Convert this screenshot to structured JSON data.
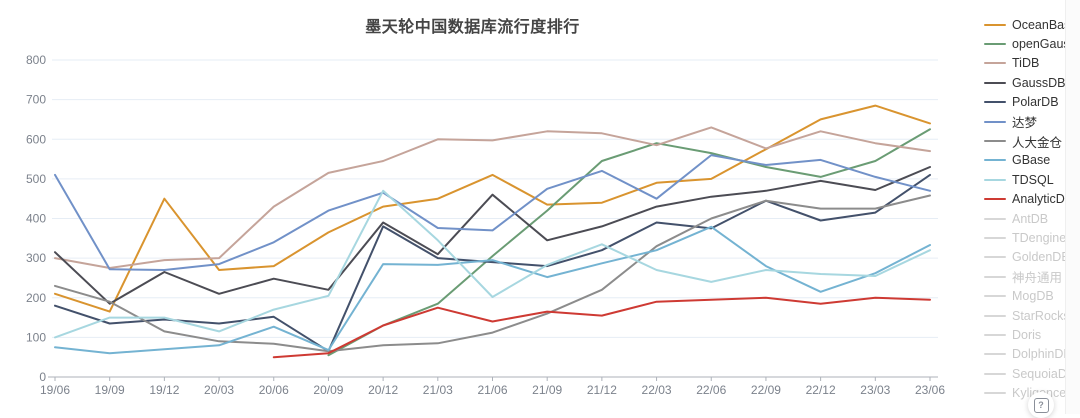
{
  "title": "墨天轮中国数据库流行度排行",
  "help_button": {
    "glyph": "?"
  },
  "chart_data": {
    "type": "line",
    "title": "墨天轮中国数据库流行度排行",
    "xlabel": "",
    "ylabel": "",
    "ylim": [
      0,
      800
    ],
    "y_ticks": [
      0,
      100,
      200,
      300,
      400,
      500,
      600,
      700,
      800
    ],
    "grid": true,
    "legend_position": "right",
    "categories": [
      "19/06",
      "19/09",
      "19/12",
      "20/03",
      "20/06",
      "20/09",
      "20/12",
      "21/03",
      "21/06",
      "21/09",
      "21/12",
      "22/03",
      "22/06",
      "22/09",
      "22/12",
      "23/03",
      "23/06"
    ],
    "series": [
      {
        "name": "OceanBase",
        "color": "#d9942f",
        "values": [
          210,
          165,
          450,
          270,
          280,
          365,
          430,
          450,
          510,
          435,
          440,
          490,
          500,
          575,
          650,
          685,
          640
        ]
      },
      {
        "name": "openGauss",
        "color": "#6a9c74",
        "values": [
          null,
          null,
          null,
          null,
          null,
          55,
          130,
          185,
          305,
          420,
          545,
          590,
          565,
          530,
          505,
          545,
          625
        ]
      },
      {
        "name": "TiDB",
        "color": "#c5a49a",
        "values": [
          300,
          275,
          295,
          300,
          430,
          515,
          545,
          600,
          597,
          620,
          615,
          585,
          630,
          577,
          620,
          590,
          570
        ]
      },
      {
        "name": "GaussDB",
        "color": "#4c4c54",
        "values": [
          315,
          185,
          265,
          210,
          248,
          220,
          390,
          310,
          460,
          345,
          380,
          430,
          455,
          470,
          495,
          472,
          530
        ]
      },
      {
        "name": "PolarDB",
        "color": "#43516b",
        "values": [
          180,
          135,
          145,
          135,
          152,
          65,
          380,
          300,
          290,
          280,
          320,
          390,
          375,
          445,
          395,
          415,
          510
        ]
      },
      {
        "name": "达梦",
        "color": "#7191c8",
        "values": [
          510,
          272,
          270,
          285,
          340,
          420,
          465,
          376,
          370,
          475,
          520,
          450,
          560,
          535,
          548,
          505,
          470
        ]
      },
      {
        "name": "人大金仓",
        "color": "#8c8c8c",
        "values": [
          230,
          190,
          115,
          90,
          84,
          65,
          80,
          85,
          112,
          160,
          220,
          330,
          400,
          445,
          425,
          425,
          458
        ]
      },
      {
        "name": "GBase",
        "color": "#74b3d2",
        "values": [
          75,
          60,
          70,
          80,
          127,
          68,
          285,
          283,
          295,
          252,
          287,
          320,
          379,
          280,
          215,
          262,
          333
        ]
      },
      {
        "name": "TDSQL",
        "color": "#a7d7e0",
        "values": [
          100,
          150,
          150,
          115,
          170,
          205,
          470,
          345,
          202,
          283,
          335,
          270,
          240,
          270,
          260,
          255,
          320
        ]
      },
      {
        "name": "AnalyticDB",
        "color": "#ce3a33",
        "values": [
          null,
          null,
          null,
          null,
          50,
          60,
          130,
          175,
          140,
          165,
          155,
          190,
          195,
          200,
          185,
          200,
          195
        ]
      }
    ],
    "inactive_series": [
      "AntDB",
      "TDengine",
      "GoldenDB",
      "神舟通用",
      "MogDB",
      "StarRocks",
      "Doris",
      "DolphinDB",
      "SequoiaDB",
      "Kyligence"
    ],
    "inactive_color": "#d7d7d7",
    "colors": {
      "grid_line": "#e6edf5",
      "axis_line": "#adb2ba",
      "tick_label": "#7c828c"
    }
  }
}
